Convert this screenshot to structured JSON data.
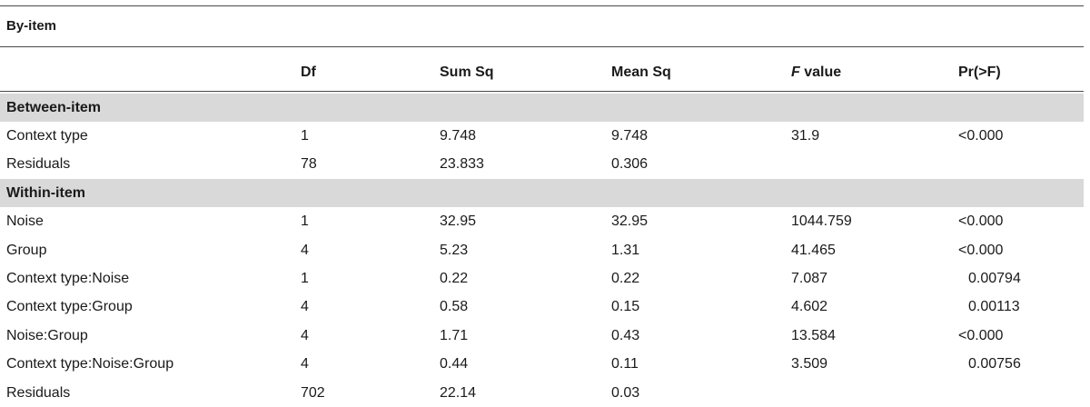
{
  "caption": "By-item",
  "header": {
    "df": "Df",
    "sum_sq": "Sum Sq",
    "mean_sq": "Mean Sq",
    "f_italic": "F",
    "f_rest": " value",
    "pr": "Pr(>F)"
  },
  "rows": [
    {
      "label": "Between-item",
      "section": true
    },
    {
      "label": "Context type",
      "df": "1",
      "sum_sq": "9.748",
      "mean_sq": "9.748",
      "f": "31.9",
      "pr": "<0.000"
    },
    {
      "label": "Residuals",
      "df": "78",
      "sum_sq": "23.833",
      "mean_sq": "0.306",
      "f": "",
      "pr": ""
    },
    {
      "label": "Within-item",
      "section": true
    },
    {
      "label": "Noise",
      "df": "1",
      "sum_sq": "32.95",
      "mean_sq": "32.95",
      "f": "1044.759",
      "pr": "<0.000"
    },
    {
      "label": "Group",
      "df": "4",
      "sum_sq": "5.23",
      "mean_sq": "1.31",
      "f": "41.465",
      "pr": "<0.000"
    },
    {
      "label": "Context type:Noise",
      "df": "1",
      "sum_sq": "0.22",
      "mean_sq": "0.22",
      "f": "7.087",
      "pr": "0.00794"
    },
    {
      "label": "Context type:Group",
      "df": "4",
      "sum_sq": "0.58",
      "mean_sq": "0.15",
      "f": "4.602",
      "pr": "0.00113"
    },
    {
      "label": "Noise:Group",
      "df": "4",
      "sum_sq": "1.71",
      "mean_sq": "0.43",
      "f": "13.584",
      "pr": "<0.000"
    },
    {
      "label": "Context type:Noise:Group",
      "df": "4",
      "sum_sq": "0.44",
      "mean_sq": "0.11",
      "f": "3.509",
      "pr": "0.00756"
    },
    {
      "label": "Residuals",
      "df": "702",
      "sum_sq": "22.14",
      "mean_sq": "0.03",
      "f": "",
      "pr": ""
    }
  ]
}
